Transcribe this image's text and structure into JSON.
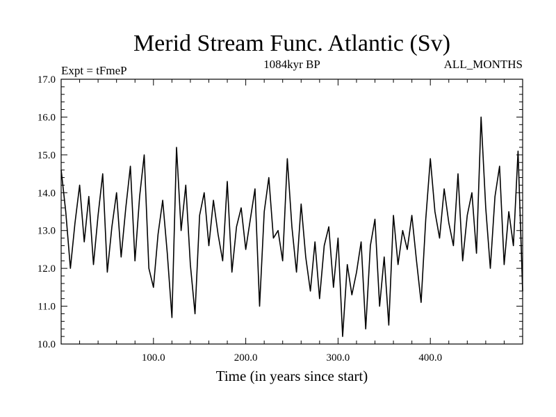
{
  "chart_data": {
    "type": "line",
    "title": "Merid Stream Func. Atlantic (Sv)",
    "subtitle": "1084kyr BP",
    "annotation_left": "Expt = tFmeP",
    "annotation_right": "ALL_MONTHS",
    "xlabel": "Time (in years since start)",
    "ylabel": "",
    "xlim": [
      0,
      500
    ],
    "ylim": [
      10.0,
      17.0
    ],
    "xticks": [
      100,
      200,
      300,
      400
    ],
    "xtick_labels": [
      "100.0",
      "200.0",
      "300.0",
      "400.0"
    ],
    "yticks": [
      10,
      11,
      12,
      13,
      14,
      15,
      16,
      17
    ],
    "ytick_labels": [
      "10.0",
      "11.0",
      "12.0",
      "13.0",
      "14.0",
      "15.0",
      "16.0",
      "17.0"
    ],
    "grid": false,
    "line_color": "#000000",
    "series": [
      {
        "name": "Merid Stream Func. Atlantic",
        "x": [
          0,
          5,
          10,
          15,
          20,
          25,
          30,
          35,
          40,
          45,
          50,
          55,
          60,
          65,
          70,
          75,
          80,
          85,
          90,
          95,
          100,
          105,
          110,
          115,
          120,
          125,
          130,
          135,
          140,
          145,
          150,
          155,
          160,
          165,
          170,
          175,
          180,
          185,
          190,
          195,
          200,
          205,
          210,
          215,
          220,
          225,
          230,
          235,
          240,
          245,
          250,
          255,
          260,
          265,
          270,
          275,
          280,
          285,
          290,
          295,
          300,
          305,
          310,
          315,
          320,
          325,
          330,
          335,
          340,
          345,
          350,
          355,
          360,
          365,
          370,
          375,
          380,
          385,
          390,
          395,
          400,
          405,
          410,
          415,
          420,
          425,
          430,
          435,
          440,
          445,
          450,
          455,
          460,
          465,
          470,
          475,
          480,
          485,
          490,
          495,
          500
        ],
        "values": [
          14.6,
          13.5,
          12.0,
          13.2,
          14.2,
          12.7,
          13.9,
          12.1,
          13.4,
          14.5,
          11.9,
          13.1,
          14.0,
          12.3,
          13.6,
          14.7,
          12.2,
          13.9,
          15.0,
          12.0,
          11.5,
          12.9,
          13.8,
          12.4,
          10.7,
          15.2,
          13.0,
          14.2,
          12.1,
          10.8,
          13.4,
          14.0,
          12.6,
          13.8,
          12.9,
          12.2,
          14.3,
          11.9,
          13.1,
          13.6,
          12.5,
          13.3,
          14.1,
          11.0,
          13.5,
          14.4,
          12.8,
          13.0,
          12.2,
          14.9,
          13.1,
          11.9,
          13.7,
          12.3,
          11.4,
          12.7,
          11.2,
          12.6,
          13.1,
          11.5,
          12.8,
          10.2,
          12.1,
          11.3,
          11.9,
          12.7,
          10.4,
          12.6,
          13.3,
          11.0,
          12.3,
          10.5,
          13.4,
          12.1,
          13.0,
          12.5,
          13.4,
          12.2,
          11.1,
          13.3,
          14.9,
          13.5,
          12.8,
          14.1,
          13.2,
          12.6,
          14.5,
          12.2,
          13.4,
          14.0,
          12.4,
          16.0,
          13.6,
          12.0,
          13.9,
          14.7,
          12.1,
          13.5,
          12.6,
          15.1,
          11.4
        ]
      }
    ]
  }
}
